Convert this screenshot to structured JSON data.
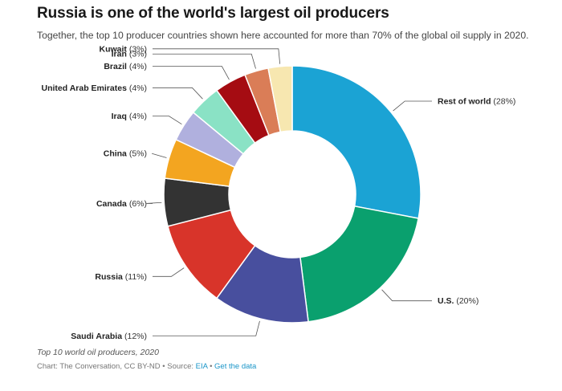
{
  "title": "Russia is one of the world's largest oil producers",
  "subtitle": "Together, the top 10 producer countries shown here accounted for more than 70% of the global oil supply in 2020.",
  "chart_data": {
    "type": "donut",
    "title": "Russia is one of the world's largest oil producers",
    "subtitle": "Together, the top 10 producer countries shown here accounted for more than 70% of the global oil supply in 2020.",
    "unit": "%",
    "slices": [
      {
        "name": "Rest of world",
        "value": 28,
        "label": "(28%)",
        "color": "#1ba3d4"
      },
      {
        "name": "U.S.",
        "value": 20,
        "label": "(20%)",
        "color": "#0aa06e"
      },
      {
        "name": "Saudi Arabia",
        "value": 12,
        "label": "(12%)",
        "color": "#484f9e"
      },
      {
        "name": "Russia",
        "value": 11,
        "label": "(11%)",
        "color": "#d8342a"
      },
      {
        "name": "Canada",
        "value": 6,
        "label": "(6%)",
        "color": "#333333"
      },
      {
        "name": "China",
        "value": 5,
        "label": "(5%)",
        "color": "#f3a520"
      },
      {
        "name": "Iraq",
        "value": 4,
        "label": "(4%)",
        "color": "#b0b0de"
      },
      {
        "name": "United Arab Emirates",
        "value": 4,
        "label": "(4%)",
        "color": "#8ae2c5"
      },
      {
        "name": "Brazil",
        "value": 4,
        "label": "(4%)",
        "color": "#a50c12"
      },
      {
        "name": "Iran",
        "value": 3,
        "label": "(3%)",
        "color": "#da7d57"
      },
      {
        "name": "Kuwait",
        "value": 3,
        "label": "(3%)",
        "color": "#f7e7b0"
      }
    ]
  },
  "footer": {
    "caption": "Top 10 world oil producers, 2020",
    "credit_prefix": "Chart: The Conversation, CC BY-ND • Source: ",
    "source_link": "EIA",
    "separator": " • ",
    "data_link": "Get the data"
  }
}
